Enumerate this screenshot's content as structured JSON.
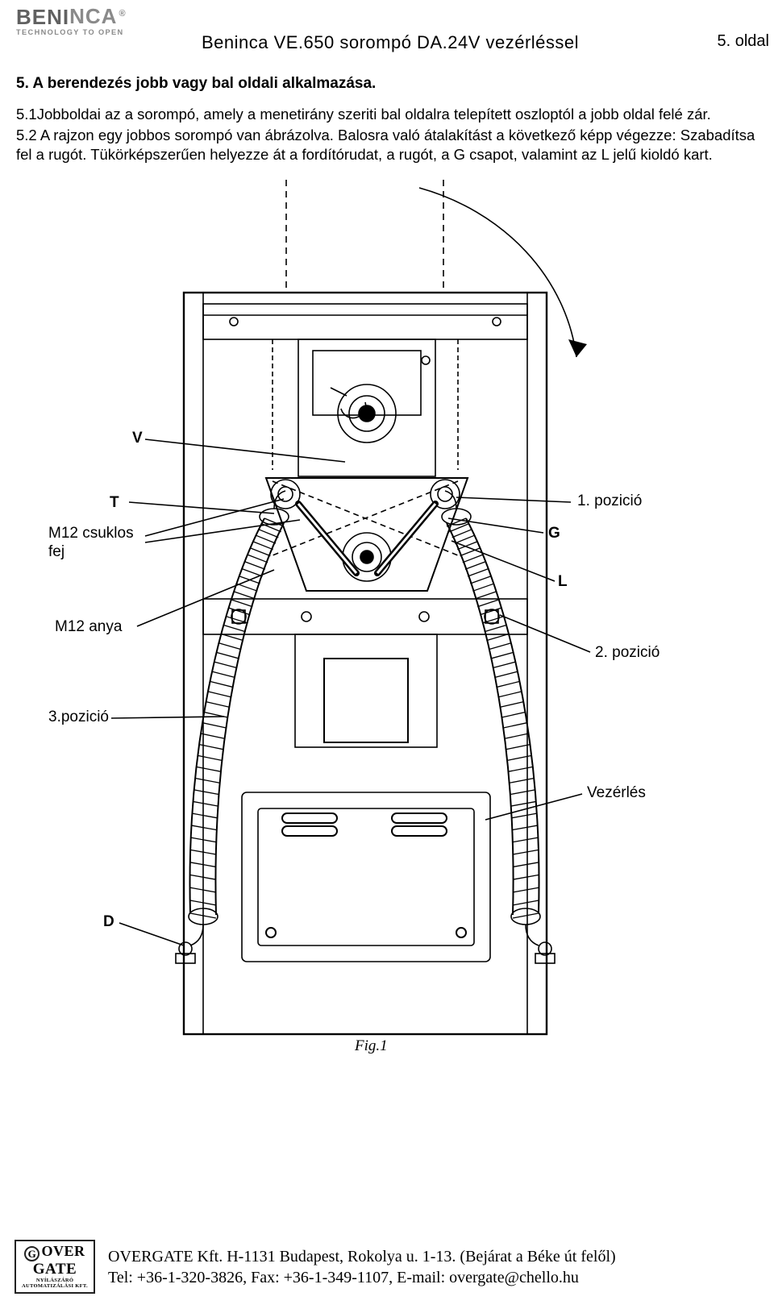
{
  "brand": {
    "name_main": "BENI",
    "name_accent": "NCA",
    "reg": "®",
    "tagline": "TECHNOLOGY TO OPEN"
  },
  "header": {
    "title": "Beninca VE.650 sorompó DA.24V vezérléssel",
    "page": "5. oldal"
  },
  "text": {
    "h5": "5. A berendezés jobb vagy bal oldali alkalmazása.",
    "p1": "5.1Jobboldai az a sorompó, amely a menetirány szeriti bal oldalra telepített oszloptól a jobb oldal felé zár.",
    "p2": "5.2 A rajzon egy jobbos sorompó van ábrázolva. Balosra való átalakítást a következő képp végezze: Szabadítsa fel a rugót. Tükörképszerűen helyezze át a  fordítórudat, a rugót, a G csapot, valamint az L jelű kioldó kart."
  },
  "diagram": {
    "stroke": "#000000",
    "fill_bg": "#ffffff",
    "labels": {
      "V": "V",
      "T": "T",
      "M12_csuklos": "M12 csuklos\nfej",
      "M12_anya": "M12 anya",
      "pos3": "3.pozició",
      "D": "D",
      "pos1": "1. pozició",
      "G": "G",
      "L": "L",
      "pos2": "2. pozició",
      "vezerles": "Vezérlés",
      "fig": "Fig.1"
    }
  },
  "footer": {
    "logo": {
      "row1": "OVER",
      "row2": "GATE",
      "row3": "NYÍLÁSZÁRÓ AUTOMATIZÁLÁSI KFT.",
      "g": "G"
    },
    "line1": "OVERGATE Kft. H-1131 Budapest, Rokolya u. 1-13. (Bejárat a Béke út felől)",
    "line2": "Tel: +36-1-320-3826, Fax: +36-1-349-1107, E-mail: overgate@chello.hu"
  }
}
